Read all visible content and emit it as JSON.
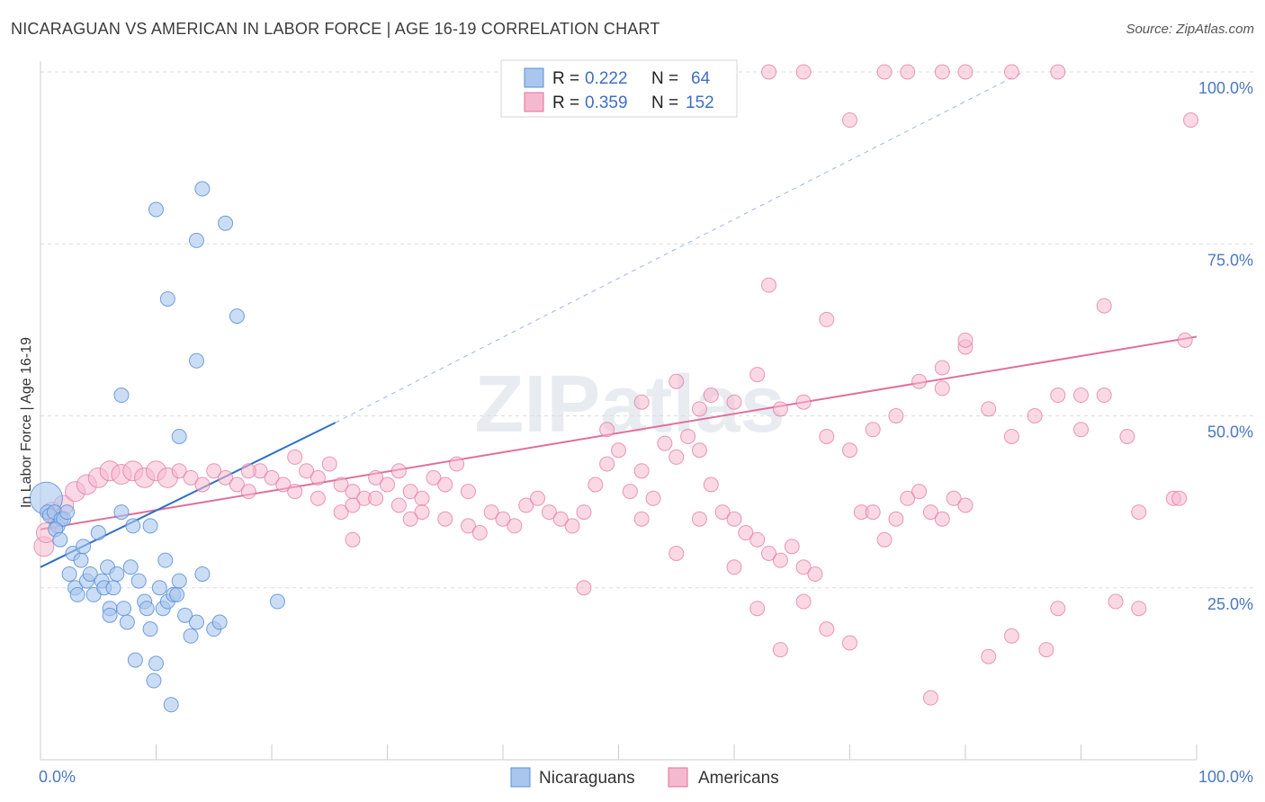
{
  "title": "NICARAGUAN VS AMERICAN IN LABOR FORCE | AGE 16-19 CORRELATION CHART",
  "source": "Source: ZipAtlas.com",
  "watermark": "ZIPatlas",
  "colors": {
    "blue": "#5b8fd6",
    "blue_fill": "#a9c6ef",
    "pink": "#e0709a",
    "pink_fill": "#f5b9cf",
    "tick": "#4a78c4"
  },
  "legend": {
    "rows": [
      {
        "r_label": "R =",
        "r_value": "0.222",
        "n_label": "N =",
        "n_value": "64"
      },
      {
        "r_label": "R =",
        "r_value": "0.359",
        "n_label": "N =",
        "n_value": "152"
      }
    ]
  },
  "chart_data": {
    "type": "scatter",
    "ylabel": "In Labor Force | Age 16-19",
    "xlim": [
      0,
      100
    ],
    "ylim": [
      0,
      100
    ],
    "x_tick_labels": [
      "0.0%",
      "100.0%"
    ],
    "y_tick_labels": [
      "100.0%",
      "75.0%",
      "50.0%",
      "25.0%"
    ],
    "y_tick_values": [
      100,
      75,
      50,
      25
    ],
    "series": [
      {
        "name": "Nicaraguans",
        "color": "#5b8fd6",
        "trend": {
          "x": [
            0,
            25.5
          ],
          "y": [
            28,
            49
          ]
        },
        "trend_dashed": {
          "x": [
            25.5,
            85
          ],
          "y": [
            49,
            100
          ]
        },
        "points": [
          [
            0.5,
            38
          ],
          [
            0.6,
            36
          ],
          [
            0.8,
            35.5
          ],
          [
            1.2,
            36
          ],
          [
            1.5,
            34
          ],
          [
            1.8,
            35
          ],
          [
            2,
            35
          ],
          [
            1.3,
            33.5
          ],
          [
            1.7,
            32
          ],
          [
            2.3,
            36
          ],
          [
            2.5,
            27
          ],
          [
            2.8,
            30
          ],
          [
            3,
            25
          ],
          [
            3.2,
            24
          ],
          [
            3.5,
            29
          ],
          [
            3.7,
            31
          ],
          [
            4,
            26
          ],
          [
            4.3,
            27
          ],
          [
            4.6,
            24
          ],
          [
            5,
            33
          ],
          [
            5.3,
            26
          ],
          [
            5.5,
            25
          ],
          [
            5.8,
            28
          ],
          [
            6,
            22
          ],
          [
            6.3,
            25
          ],
          [
            6.6,
            27
          ],
          [
            7,
            36
          ],
          [
            7.2,
            22
          ],
          [
            7.5,
            20
          ],
          [
            7.8,
            28
          ],
          [
            8,
            34
          ],
          [
            8.2,
            14.5
          ],
          [
            8.5,
            26
          ],
          [
            9,
            23
          ],
          [
            9.2,
            22
          ],
          [
            9.5,
            19
          ],
          [
            9.8,
            11.5
          ],
          [
            10,
            14
          ],
          [
            10.3,
            25
          ],
          [
            10.6,
            22
          ],
          [
            10.8,
            29
          ],
          [
            11,
            23
          ],
          [
            11.3,
            8
          ],
          [
            11.5,
            24
          ],
          [
            11.8,
            24
          ],
          [
            12,
            26
          ],
          [
            12.5,
            21
          ],
          [
            13,
            18
          ],
          [
            13.5,
            20
          ],
          [
            14,
            27
          ],
          [
            15,
            19
          ],
          [
            15.5,
            20
          ],
          [
            10,
            80
          ],
          [
            14,
            83
          ],
          [
            16,
            78
          ],
          [
            13.5,
            75.5
          ],
          [
            11,
            67
          ],
          [
            17,
            64.5
          ],
          [
            13.5,
            58
          ],
          [
            7,
            53
          ],
          [
            12,
            47
          ],
          [
            20.5,
            23
          ],
          [
            9.5,
            34
          ],
          [
            6,
            21
          ]
        ]
      },
      {
        "name": "Americans",
        "color": "#e0709a",
        "trend": {
          "x": [
            0,
            100
          ],
          "y": [
            33.5,
            61.5
          ]
        },
        "points": [
          [
            0.3,
            31
          ],
          [
            0.5,
            33
          ],
          [
            1,
            36
          ],
          [
            1.5,
            35
          ],
          [
            2,
            37
          ],
          [
            3,
            39
          ],
          [
            4,
            40
          ],
          [
            5,
            41
          ],
          [
            6,
            42
          ],
          [
            7,
            41.5
          ],
          [
            8,
            42
          ],
          [
            9,
            41
          ],
          [
            10,
            42
          ],
          [
            11,
            41
          ],
          [
            12,
            42
          ],
          [
            13,
            41
          ],
          [
            14,
            40
          ],
          [
            15,
            42
          ],
          [
            16,
            41
          ],
          [
            17,
            40
          ],
          [
            18,
            39
          ],
          [
            19,
            42
          ],
          [
            20,
            41
          ],
          [
            21,
            40
          ],
          [
            22,
            39
          ],
          [
            23,
            42
          ],
          [
            24,
            41
          ],
          [
            25,
            43
          ],
          [
            26,
            40
          ],
          [
            27,
            39
          ],
          [
            28,
            38
          ],
          [
            29,
            41
          ],
          [
            30,
            40
          ],
          [
            31,
            42
          ],
          [
            32,
            39
          ],
          [
            33,
            38
          ],
          [
            34,
            41
          ],
          [
            35,
            40
          ],
          [
            36,
            43
          ],
          [
            37,
            39
          ],
          [
            18,
            42
          ],
          [
            22,
            44
          ],
          [
            24,
            38
          ],
          [
            26,
            36
          ],
          [
            27,
            37
          ],
          [
            29,
            38
          ],
          [
            31,
            37
          ],
          [
            33,
            36
          ],
          [
            35,
            35
          ],
          [
            37,
            34
          ],
          [
            38,
            33
          ],
          [
            39,
            36
          ],
          [
            40,
            35
          ],
          [
            41,
            34
          ],
          [
            42,
            37
          ],
          [
            43,
            38
          ],
          [
            44,
            36
          ],
          [
            45,
            35
          ],
          [
            46,
            34
          ],
          [
            47,
            36
          ],
          [
            48,
            40
          ],
          [
            49,
            43
          ],
          [
            50,
            45
          ],
          [
            51,
            39
          ],
          [
            52,
            42
          ],
          [
            53,
            38
          ],
          [
            54,
            46
          ],
          [
            55,
            44
          ],
          [
            56,
            47
          ],
          [
            57,
            45
          ],
          [
            58,
            40
          ],
          [
            59,
            36
          ],
          [
            60,
            35
          ],
          [
            61,
            33
          ],
          [
            62,
            32
          ],
          [
            63,
            30
          ],
          [
            64,
            29
          ],
          [
            65,
            31
          ],
          [
            66,
            28
          ],
          [
            67,
            27
          ],
          [
            47,
            25
          ],
          [
            52,
            35
          ],
          [
            55,
            30
          ],
          [
            57,
            35
          ],
          [
            60,
            28
          ],
          [
            62,
            22
          ],
          [
            64,
            16
          ],
          [
            66,
            23
          ],
          [
            68,
            19
          ],
          [
            70,
            17
          ],
          [
            71,
            36
          ],
          [
            72,
            36
          ],
          [
            73,
            32
          ],
          [
            74,
            35
          ],
          [
            75,
            38
          ],
          [
            76,
            39
          ],
          [
            77,
            36
          ],
          [
            78,
            35
          ],
          [
            79,
            38
          ],
          [
            80,
            37
          ],
          [
            55,
            55
          ],
          [
            58,
            53
          ],
          [
            60,
            52
          ],
          [
            62,
            56
          ],
          [
            64,
            51
          ],
          [
            66,
            52
          ],
          [
            68,
            47
          ],
          [
            70,
            45
          ],
          [
            72,
            48
          ],
          [
            74,
            50
          ],
          [
            76,
            55
          ],
          [
            78,
            57
          ],
          [
            80,
            60
          ],
          [
            82,
            51
          ],
          [
            84,
            47
          ],
          [
            86,
            50
          ],
          [
            88,
            53
          ],
          [
            90,
            48
          ],
          [
            92,
            53
          ],
          [
            94,
            47
          ],
          [
            49,
            48
          ],
          [
            52,
            52
          ],
          [
            57,
            51
          ],
          [
            63,
            69
          ],
          [
            68,
            64
          ],
          [
            78,
            54
          ],
          [
            80,
            61
          ],
          [
            77,
            9
          ],
          [
            82,
            15
          ],
          [
            84,
            18
          ],
          [
            87,
            16
          ],
          [
            88,
            22
          ],
          [
            93,
            23
          ],
          [
            95,
            22
          ],
          [
            98,
            38
          ],
          [
            98.5,
            38
          ],
          [
            95,
            36
          ],
          [
            92,
            66
          ],
          [
            99,
            61
          ],
          [
            90,
            53
          ],
          [
            63,
            100
          ],
          [
            66,
            100
          ],
          [
            73,
            100
          ],
          [
            75,
            100
          ],
          [
            78,
            100
          ],
          [
            80,
            100
          ],
          [
            84,
            100
          ],
          [
            88,
            100
          ],
          [
            99.5,
            93
          ],
          [
            70,
            93
          ],
          [
            32,
            35
          ],
          [
            27,
            32
          ]
        ]
      }
    ],
    "bottom_legend": [
      "Nicaraguans",
      "Americans"
    ]
  }
}
